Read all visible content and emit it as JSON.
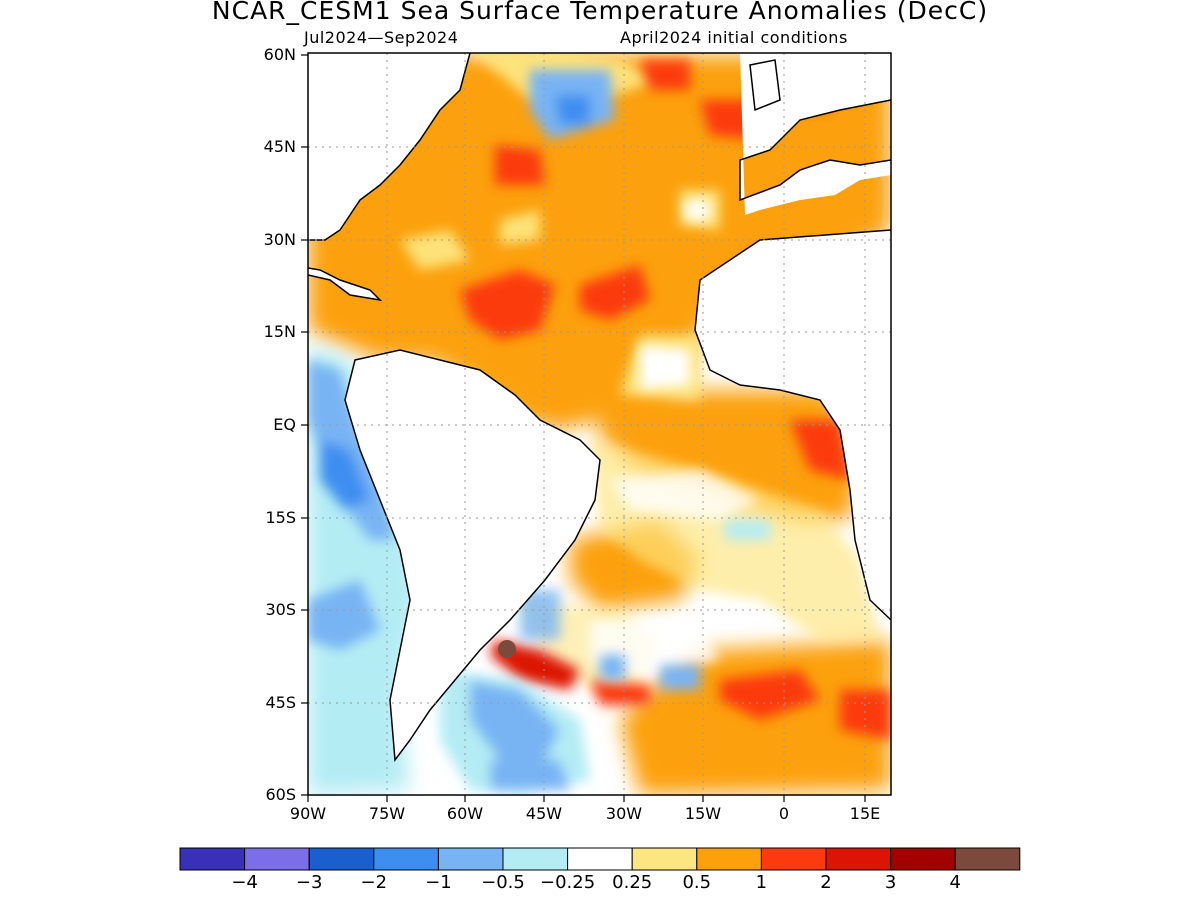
{
  "title": "NCAR_CESM1 Sea Surface Temperature Anomalies (DecC)",
  "period": "Jul2024—Sep2024",
  "init": "April2024 initial conditions",
  "lat_labels": [
    "60N",
    "45N",
    "30N",
    "15N",
    "EQ",
    "15S",
    "30S",
    "45S",
    "60S"
  ],
  "lon_labels": [
    "90W",
    "75W",
    "60W",
    "45W",
    "30W",
    "15W",
    "0",
    "15E"
  ],
  "colorbar": {
    "colors": [
      "#3a2fb8",
      "#7b6ee8",
      "#1a5fd0",
      "#3c8ef0",
      "#78b4f4",
      "#b4ecf4",
      "#ffffff",
      "#fde680",
      "#fca10b",
      "#fc3a10",
      "#dc1406",
      "#a30000",
      "#7b4a3c"
    ],
    "labels": [
      "-4",
      "-3",
      "-2",
      "-1",
      "-0.5",
      "-0.25",
      "0.25",
      "0.5",
      "1",
      "2",
      "3",
      "4"
    ]
  }
}
